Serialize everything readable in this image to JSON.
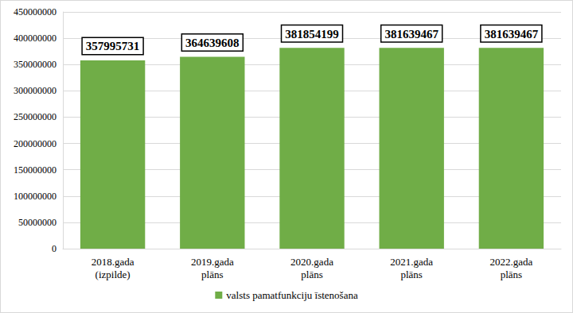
{
  "chart_data": {
    "type": "bar",
    "categories": [
      "2018.gada\n(izpilde)",
      "2019.gada\nplāns",
      "2020.gada\nplāns",
      "2021.gada\nplāns",
      "2022.gada\nplāns"
    ],
    "series": [
      {
        "name": "valsts pamatfunkciju īstenošana",
        "color": "#70ad47",
        "values": [
          357995731,
          364639608,
          381854199,
          381639467,
          381639467
        ]
      }
    ],
    "ylim": [
      0,
      450000000
    ],
    "yticks": [
      0,
      50000000,
      100000000,
      150000000,
      200000000,
      250000000,
      300000000,
      350000000,
      400000000,
      450000000
    ],
    "grid": true,
    "legend": "bottom",
    "data_labels": true
  }
}
